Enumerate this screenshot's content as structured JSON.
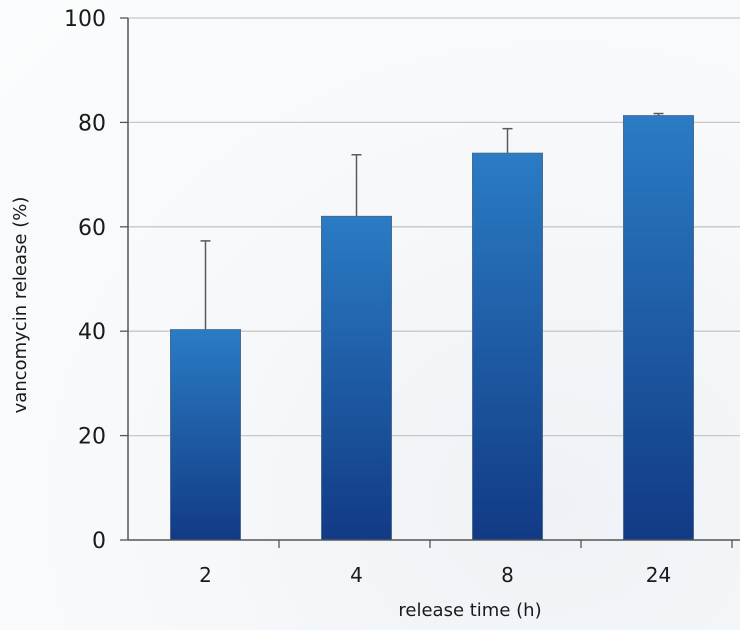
{
  "chart_data": {
    "type": "bar",
    "title": "",
    "xlabel": "release time (h)",
    "ylabel": "vancomycin release (%)",
    "categories": [
      "2",
      "4",
      "8",
      "24"
    ],
    "series": [
      {
        "values": [
          40.3,
          62.0,
          74.1,
          81.3
        ],
        "error": [
          17.0,
          11.8,
          4.7,
          0.4
        ]
      }
    ],
    "ylim": [
      0,
      100
    ],
    "yticks": [
      0,
      20,
      40,
      60,
      80,
      100
    ],
    "grid": true,
    "legend": "none",
    "colors": {
      "bar_top": "#2a7cc4",
      "bar_bottom": "#123a85",
      "grid": "#c8c8c8",
      "axis": "#555555"
    }
  }
}
